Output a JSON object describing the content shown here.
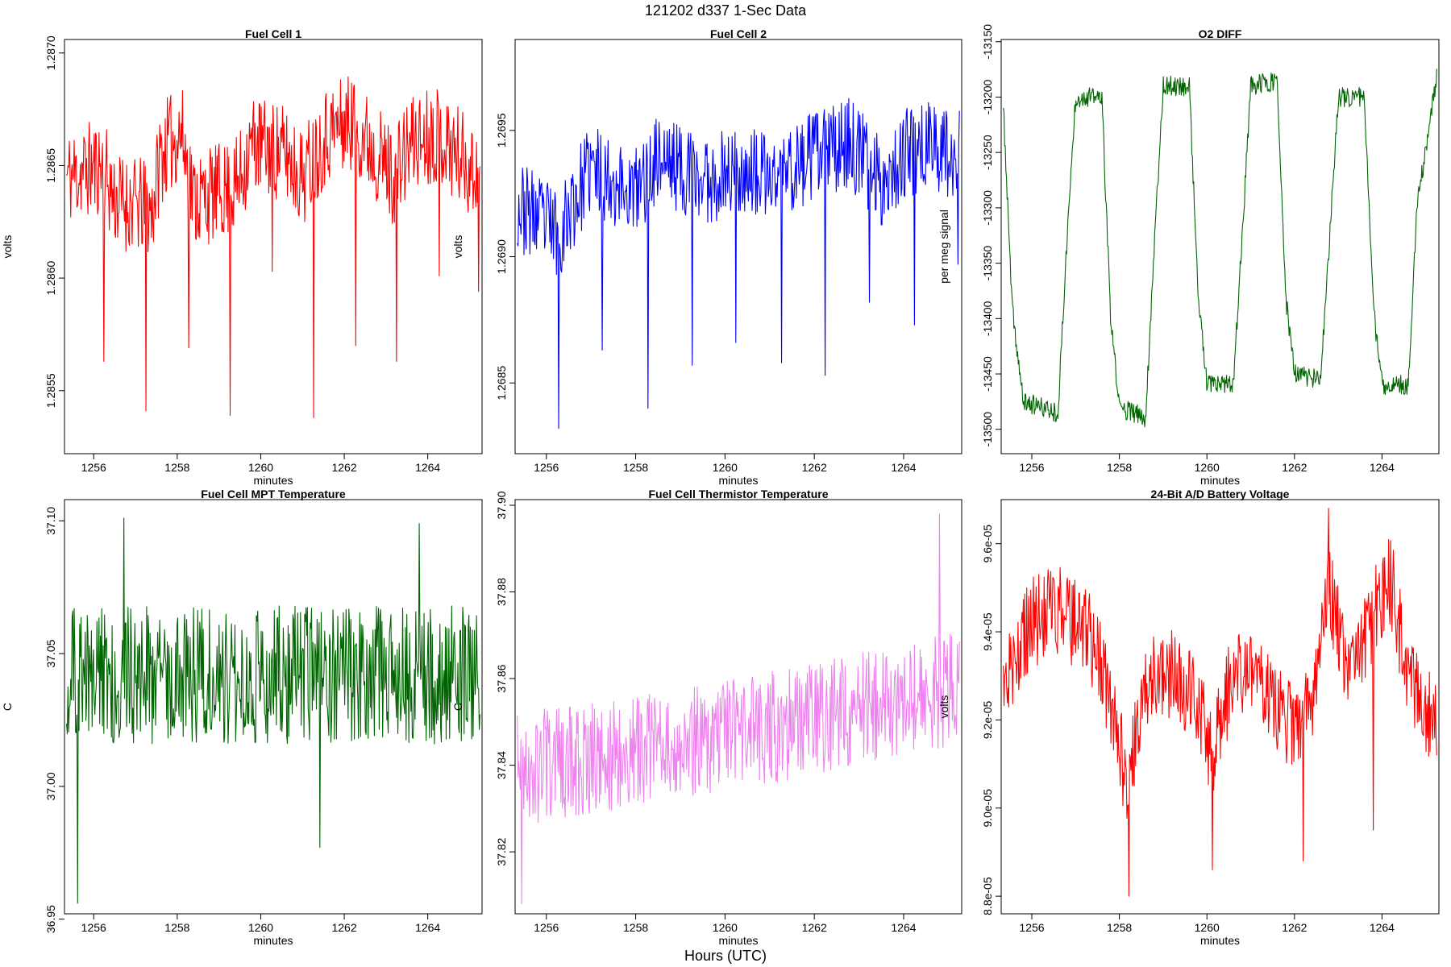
{
  "figure": {
    "title": "121202   d337   1-Sec Data",
    "footer": "Hours (UTC)"
  },
  "chart_data": [
    {
      "type": "line",
      "title": "Fuel Cell 1",
      "xlabel": "minutes",
      "ylabel": "volts",
      "color": "#ff0000",
      "xlim": [
        1255.3,
        1265.3
      ],
      "ylim": [
        1.28522,
        1.28706
      ],
      "xticks": [
        1256,
        1258,
        1260,
        1262,
        1264
      ],
      "xtick_labels": [
        "1256",
        "1258",
        "1260",
        "1262",
        "1264"
      ],
      "yticks": [
        1.2855,
        1.286,
        1.2865,
        1.287
      ],
      "ytick_labels": [
        "1.2855",
        "1.2860",
        "1.2865",
        "1.2870"
      ],
      "series": [
        {
          "name": "Fuel Cell 1",
          "gen": {
            "start": 1255.35,
            "end": 1265.25,
            "n": 600,
            "seed": 11,
            "noise": 0.00022,
            "clampMin": 1.28522,
            "clampMax": 1.28706
          },
          "trend_x": [
            1255.35,
            1256.2,
            1256.5,
            1257.4,
            1257.6,
            1258.1,
            1258.4,
            1259.4,
            1259.8,
            1260.6,
            1261.0,
            1261.6,
            1262.2,
            1263.2,
            1263.6,
            1264.2,
            1265.25
          ],
          "trend_y": [
            1.28645,
            1.2865,
            1.28635,
            1.2863,
            1.28655,
            1.28665,
            1.28635,
            1.2864,
            1.2866,
            1.28655,
            1.28645,
            1.28665,
            1.2867,
            1.28645,
            1.2866,
            1.28665,
            1.28645
          ],
          "spikes": [
            [
              1256.25,
              1.28563
            ],
            [
              1257.25,
              1.28541
            ],
            [
              1258.28,
              1.28569
            ],
            [
              1259.27,
              1.28539
            ],
            [
              1260.27,
              1.28603
            ],
            [
              1261.27,
              1.28538
            ],
            [
              1262.27,
              1.2857
            ],
            [
              1263.25,
              1.28563
            ],
            [
              1264.27,
              1.28601
            ],
            [
              1265.22,
              1.28594
            ]
          ]
        }
      ]
    },
    {
      "type": "line",
      "title": "Fuel Cell 2",
      "xlabel": "minutes",
      "ylabel": "volts",
      "color": "#0000ff",
      "xlim": [
        1255.3,
        1265.3
      ],
      "ylim": [
        1.26822,
        1.26986
      ],
      "xticks": [
        1256,
        1258,
        1260,
        1262,
        1264
      ],
      "xtick_labels": [
        "1256",
        "1258",
        "1260",
        "1262",
        "1264"
      ],
      "yticks": [
        1.2685,
        1.269,
        1.2695
      ],
      "ytick_labels": [
        "1.2685",
        "1.2690",
        "1.2695"
      ],
      "series": [
        {
          "name": "Fuel Cell 2",
          "gen": {
            "start": 1255.35,
            "end": 1265.25,
            "n": 600,
            "seed": 23,
            "noise": 0.00018,
            "clampMin": 1.26822,
            "clampMax": 1.26986
          },
          "trend_x": [
            1255.35,
            1256.3,
            1257.0,
            1257.5,
            1258.0,
            1258.5,
            1259.5,
            1260.3,
            1261.0,
            1262.0,
            1262.8,
            1263.5,
            1264.0,
            1264.5,
            1265.25
          ],
          "trend_y": [
            1.2692,
            1.2691,
            1.26935,
            1.2693,
            1.26925,
            1.2694,
            1.2693,
            1.26935,
            1.2693,
            1.2694,
            1.26945,
            1.2693,
            1.2694,
            1.26945,
            1.2694
          ],
          "spikes": [
            [
              1256.27,
              1.26832
            ],
            [
              1257.25,
              1.26863
            ],
            [
              1258.27,
              1.2684
            ],
            [
              1259.27,
              1.26857
            ],
            [
              1260.25,
              1.26866
            ],
            [
              1261.27,
              1.26858
            ],
            [
              1262.25,
              1.26853
            ],
            [
              1263.23,
              1.26882
            ],
            [
              1264.25,
              1.26873
            ],
            [
              1265.22,
              1.26897
            ]
          ]
        }
      ]
    },
    {
      "type": "line",
      "title": "O2 DIFF",
      "xlabel": "minutes",
      "ylabel": "per meg signal",
      "color": "#006400",
      "xlim": [
        1255.3,
        1265.3
      ],
      "ylim": [
        -13522,
        -13148
      ],
      "xticks": [
        1256,
        1258,
        1260,
        1262,
        1264
      ],
      "xtick_labels": [
        "1256",
        "1258",
        "1260",
        "1262",
        "1264"
      ],
      "yticks": [
        -13500,
        -13450,
        -13400,
        -13350,
        -13300,
        -13250,
        -13200,
        -13150
      ],
      "ytick_labels": [
        "-13500",
        "-13450",
        "-13400",
        "-13350",
        "-13300",
        "-13250",
        "-13200",
        "-13150"
      ],
      "series": [
        {
          "name": "O2 DIFF",
          "gen": {
            "start": 1255.35,
            "end": 1265.25,
            "n": 700,
            "seed": 37,
            "noise": 9,
            "clampMin": -13510,
            "clampMax": -13160
          },
          "trend_x": [
            1255.35,
            1255.55,
            1255.8,
            1256.6,
            1256.8,
            1257.0,
            1257.6,
            1257.8,
            1258.0,
            1258.6,
            1258.8,
            1259.0,
            1259.6,
            1259.8,
            1260.0,
            1260.6,
            1260.8,
            1261.0,
            1261.6,
            1261.8,
            1262.0,
            1262.6,
            1262.8,
            1263.0,
            1263.6,
            1263.8,
            1264.0,
            1264.6,
            1264.8,
            1265.25
          ],
          "trend_y": [
            -13210,
            -13390,
            -13475,
            -13485,
            -13330,
            -13200,
            -13200,
            -13400,
            -13480,
            -13490,
            -13330,
            -13190,
            -13190,
            -13380,
            -13460,
            -13460,
            -13330,
            -13190,
            -13185,
            -13380,
            -13450,
            -13455,
            -13330,
            -13200,
            -13200,
            -13390,
            -13460,
            -13460,
            -13300,
            -13180
          ]
        }
      ]
    },
    {
      "type": "line",
      "title": "Fuel Cell MPT Temperature",
      "xlabel": "minutes",
      "ylabel": "C",
      "color": "#006400",
      "xlim": [
        1255.3,
        1265.3
      ],
      "ylim": [
        36.952,
        37.108
      ],
      "xticks": [
        1256,
        1258,
        1260,
        1262,
        1264
      ],
      "xtick_labels": [
        "1256",
        "1258",
        "1260",
        "1262",
        "1264"
      ],
      "yticks": [
        36.95,
        37.0,
        37.05,
        37.1
      ],
      "ytick_labels": [
        "36.95",
        "37.00",
        "37.05",
        "37.10"
      ],
      "series": [
        {
          "name": "Fuel Cell MPT Temperature",
          "gen": {
            "start": 1255.35,
            "end": 1265.25,
            "n": 600,
            "seed": 51,
            "noise": 0.026,
            "clampMin": 36.955,
            "clampMax": 37.102
          },
          "trend_x": [
            1255.35,
            1265.25
          ],
          "trend_y": [
            37.042,
            37.042
          ],
          "spikes": [
            [
              1255.62,
              36.956
            ],
            [
              1256.72,
              37.101
            ],
            [
              1261.42,
              36.977
            ],
            [
              1263.8,
              37.099
            ]
          ]
        }
      ]
    },
    {
      "type": "line",
      "title": "Fuel Cell Thermistor Temperature",
      "xlabel": "minutes",
      "ylabel": "C",
      "color": "#ee82ee",
      "xlim": [
        1255.3,
        1265.3
      ],
      "ylim": [
        37.8057,
        37.9013
      ],
      "xticks": [
        1256,
        1258,
        1260,
        1262,
        1264
      ],
      "xtick_labels": [
        "1256",
        "1258",
        "1260",
        "1262",
        "1264"
      ],
      "yticks": [
        37.82,
        37.84,
        37.86,
        37.88,
        37.9
      ],
      "ytick_labels": [
        "37.82",
        "37.84",
        "37.86",
        "37.88",
        "37.90"
      ],
      "series": [
        {
          "name": "Fuel Cell Thermistor Temperature",
          "gen": {
            "start": 1255.35,
            "end": 1265.25,
            "n": 620,
            "seed": 67,
            "noise": 0.013,
            "clampMin": 37.808,
            "clampMax": 37.898
          },
          "trend_x": [
            1255.35,
            1260.3,
            1265.25
          ],
          "trend_y": [
            37.839,
            37.847,
            37.858
          ],
          "spikes": [
            [
              1255.45,
              37.808
            ],
            [
              1264.8,
              37.898
            ]
          ]
        }
      ]
    },
    {
      "type": "line",
      "title": "24-Bit A/D Battery Voltage",
      "xlabel": "minutes",
      "ylabel": "volts",
      "color": "#ff0000",
      "xlim": [
        1255.3,
        1265.3
      ],
      "ylim": [
        8.76e-05,
        9.7e-05
      ],
      "xticks": [
        1256,
        1258,
        1260,
        1262,
        1264
      ],
      "xtick_labels": [
        "1256",
        "1258",
        "1260",
        "1262",
        "1264"
      ],
      "yticks": [
        8.8e-05,
        9e-05,
        9.2e-05,
        9.4e-05,
        9.6e-05
      ],
      "ytick_labels": [
        "8.8e-05",
        "9.0e-05",
        "9.2e-05",
        "9.4e-05",
        "9.6e-05"
      ],
      "series": [
        {
          "name": "24-Bit A/D Battery Voltage",
          "gen": {
            "start": 1255.35,
            "end": 1265.25,
            "n": 650,
            "seed": 83,
            "noise": 1.05e-06,
            "clampMin": 8.8e-05,
            "clampMax": 9.68e-05
          },
          "trend_x": [
            1255.35,
            1256.0,
            1256.6,
            1257.3,
            1257.8,
            1258.2,
            1258.6,
            1259.2,
            1259.8,
            1260.1,
            1260.6,
            1261.3,
            1261.8,
            1262.2,
            1262.6,
            1262.8,
            1263.2,
            1263.7,
            1264.2,
            1264.6,
            1265.25
          ],
          "trend_y": [
            9.28e-05,
            9.42e-05,
            9.45e-05,
            9.4e-05,
            9.25e-05,
            9.05e-05,
            9.28e-05,
            9.3e-05,
            9.25e-05,
            9.12e-05,
            9.3e-05,
            9.28e-05,
            9.2e-05,
            9.18e-05,
            9.35e-05,
            9.5e-05,
            9.3e-05,
            9.42e-05,
            9.52e-05,
            9.28e-05,
            9.2e-05
          ],
          "spikes": [
            [
              1258.22,
              8.8e-05
            ],
            [
              1260.12,
              8.86e-05
            ],
            [
              1262.2,
              8.88e-05
            ],
            [
              1262.78,
              9.68e-05
            ],
            [
              1263.8,
              8.95e-05
            ]
          ]
        }
      ]
    }
  ]
}
